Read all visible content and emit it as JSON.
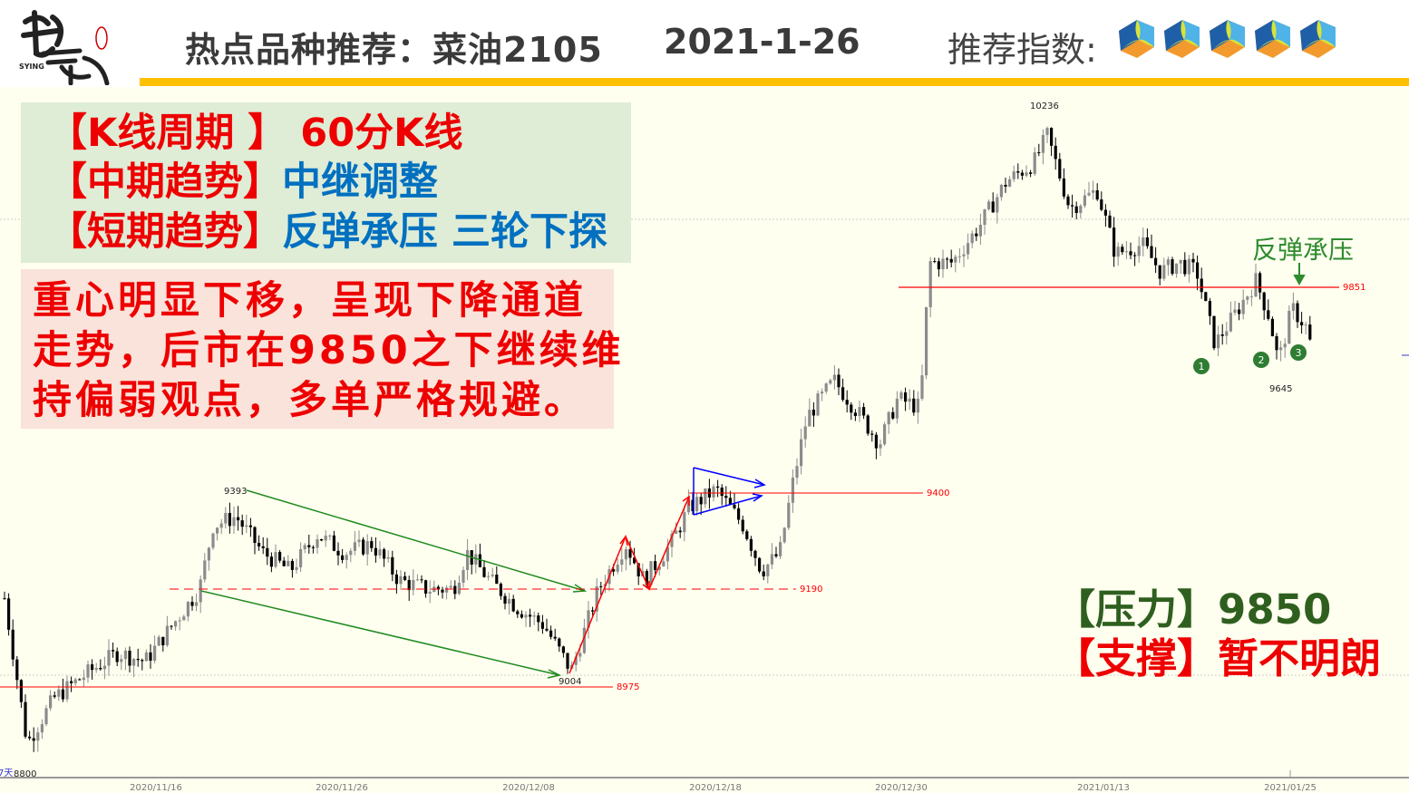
{
  "header": {
    "logo_text": "势赢 SYING",
    "title": "热点品种推荐：菜油2105",
    "date": "2021-1-26",
    "rating_label": "推荐指数:",
    "rating_count": 5,
    "accent_color": "#ffc000"
  },
  "summary": {
    "kline_label": "【K线周期 】",
    "kline_value": "60分K线",
    "mid_label": "【中期趋势】",
    "mid_value": "中继调整",
    "short_label": "【短期趋势】",
    "short_value": "反弹承压 三轮下探",
    "comment_lines": [
      "重心明显下移，呈现下降通道",
      "走势，后市在9850之下继续维",
      "持偏弱观点，多单严格规避。"
    ]
  },
  "levels": {
    "pressure_label": "【压力】",
    "pressure_value": "9850",
    "support_label": "【支撑】",
    "support_value": "暂不明朗"
  },
  "chart_data": {
    "type": "candlestick",
    "period": "60分K线",
    "x_tick_labels": [
      "2020/11/16",
      "2020/11/26",
      "2020/12/08",
      "2020/12/18",
      "2020/12/30",
      "2021/01/13",
      "2021/01/25"
    ],
    "ylim": [
      8800,
      10236
    ],
    "approx_close_path": [
      9176,
      8864,
      8962,
      9020,
      9059,
      9040,
      9118,
      9196,
      9332,
      9352,
      9274,
      9235,
      9313,
      9274,
      9293,
      9215,
      9196,
      9196,
      9274,
      9215,
      9157,
      9118,
      9020,
      9196,
      9293,
      9215,
      9293,
      9371,
      9410,
      9332,
      9235,
      9274,
      9430,
      9566,
      9644,
      9566,
      9508,
      9605,
      9586,
      9898,
      9898,
      9976,
      10073,
      10112,
      10171,
      10015,
      10054,
      9917,
      9937,
      9878,
      9898,
      9878,
      9722,
      9781,
      9859,
      9781,
      9683,
      9800,
      9761,
      9703
    ],
    "price_labels": {
      "high_left": "9393",
      "low_mid": "9004",
      "high_top": "10236",
      "low_right": "9645",
      "bottom": "8800",
      "left_edge": "7天"
    },
    "horizontal_levels": [
      {
        "value": 8975,
        "label": "8975",
        "style": "solid",
        "color": "#ff0000"
      },
      {
        "value": 9190,
        "label": "9190",
        "style": "dashed",
        "color": "#ff0000"
      },
      {
        "value": 9400,
        "label": "9400",
        "style": "solid",
        "color": "#ff0000"
      },
      {
        "value": 9851,
        "label": "9851",
        "style": "solid",
        "color": "#ff0000"
      }
    ],
    "annotation": "反弹承压",
    "wave_markers": [
      "1",
      "2",
      "3"
    ],
    "colors": {
      "up": "#8c8c8c",
      "down": "#000000",
      "channel": "#1f8a1f",
      "level": "#ff0000",
      "triangle": "#0000ff",
      "marker": "#2e7d32"
    }
  }
}
